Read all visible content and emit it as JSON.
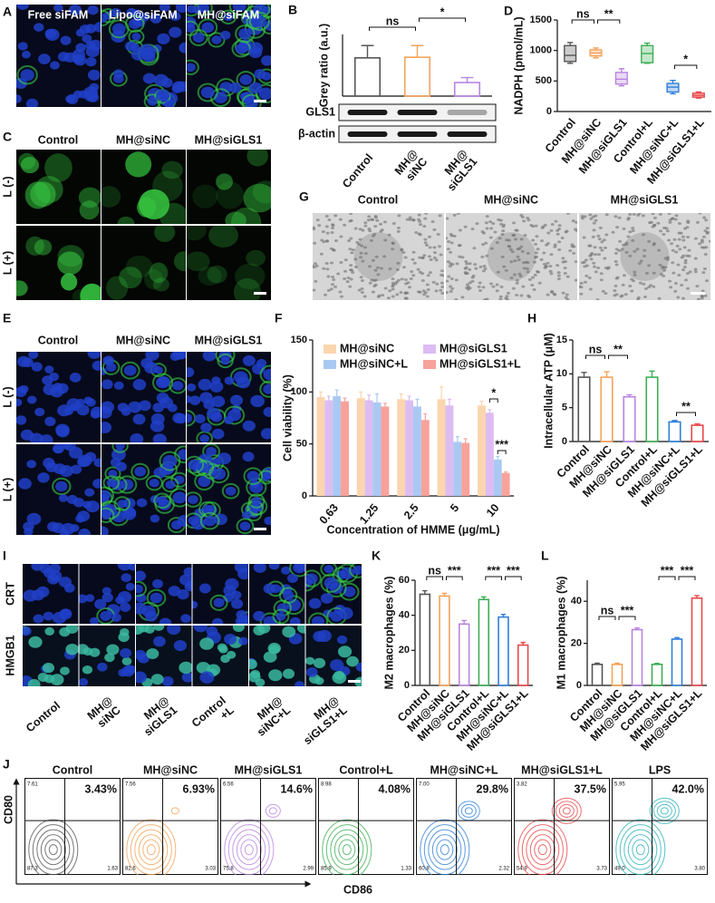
{
  "panel_letters": [
    "A",
    "B",
    "C",
    "D",
    "E",
    "F",
    "G",
    "H",
    "I",
    "J",
    "K",
    "L"
  ],
  "images": {
    "A": {
      "columns": [
        "Free siFAM",
        "Lipo@siFAM",
        "MH@siFAM"
      ]
    },
    "C": {
      "columns": [
        "Control",
        "MH@siNC",
        "MH@siGLS1"
      ],
      "rows": [
        "L (-)",
        "L (+)"
      ]
    },
    "E": {
      "columns": [
        "Control",
        "MH@siNC",
        "MH@siGLS1"
      ],
      "rows": [
        "L (-)",
        "L (+)"
      ]
    },
    "G": {
      "columns": [
        "Control",
        "MH@siNC",
        "MH@siGLS1"
      ]
    },
    "I": {
      "rows": [
        "CRT",
        "HMGB1"
      ],
      "columns": [
        "Control",
        "MH@\nsiNC",
        "MH@\nsiGLS1",
        "Control\n+L",
        "MH@\nsiNC+L",
        "MH@\nsiGLS1+L"
      ]
    },
    "J": {
      "columns": [
        "Control",
        "MH@siNC",
        "MH@siGLS1",
        "Control+L",
        "MH@siNC+L",
        "MH@siGLS1+L",
        "LPS"
      ],
      "percent": [
        "3.43%",
        "6.93%",
        "14.6%",
        "4.08%",
        "29.8%",
        "37.5%",
        "42.0%"
      ],
      "upper_left": [
        "7.61",
        "7.56",
        "6.56",
        "8.98",
        "7.00",
        "3.82",
        "5.95"
      ],
      "lower_left": [
        "87.3",
        "82.6",
        "75.8",
        "85.9",
        "60.8",
        "54.9",
        "49.0"
      ],
      "lower_right": [
        "1.63",
        "3.03",
        "2.99",
        "1.33",
        "2.32",
        "3.73",
        "3.80"
      ],
      "xlabel": "CD86",
      "ylabel": "CD80"
    }
  },
  "chart_data": [
    {
      "type": "bar",
      "ylabel": "Grey ratio (a.u.)",
      "categories": [
        "Control",
        "MH@\nsiNC",
        "MH@\nsiGLS1"
      ],
      "values": [
        0.62,
        0.63,
        0.22
      ],
      "errors": [
        0.2,
        0.19,
        0.08
      ],
      "colors": [
        "#555555",
        "#f4a259",
        "#b884e0"
      ],
      "hollow": true,
      "ylim": [
        0,
        1
      ],
      "annotations": [
        "ns",
        "*"
      ],
      "blot_labels": [
        "GLS1",
        "β-actin"
      ]
    },
    {
      "type": "box",
      "ylabel": "NADPH (pmol/mL)",
      "categories": [
        "Control",
        "MH@siNC",
        "MH@siGLS1",
        "Control+L",
        "MH@siNC+L",
        "MH@siGLS1+L"
      ],
      "min": [
        790,
        880,
        420,
        790,
        290,
        220
      ],
      "q1": [
        820,
        910,
        450,
        800,
        320,
        235
      ],
      "median": [
        920,
        960,
        530,
        950,
        400,
        265
      ],
      "q3": [
        1080,
        1010,
        640,
        1080,
        460,
        300
      ],
      "max": [
        1130,
        1040,
        700,
        1120,
        510,
        320
      ],
      "colors": [
        "#555555",
        "#f4a259",
        "#b884e0",
        "#3dae54",
        "#2f7fd8",
        "#e8474a"
      ],
      "ylim": [
        0,
        1500
      ],
      "yticks": [
        0,
        500,
        1000,
        1500
      ],
      "annotations": [
        "ns",
        "**",
        "*"
      ]
    },
    {
      "type": "grouped_bar",
      "xlabel": "Concentration of HMME (μg/mL)",
      "ylabel": "Cell viability (%)",
      "categories": [
        "0.63",
        "1.25",
        "2.5",
        "5",
        "10"
      ],
      "series": [
        {
          "name": "MH@siNC",
          "color": "#fbd5ae",
          "values": [
            95,
            94,
            93,
            93,
            87
          ],
          "errors": [
            5,
            6,
            5,
            12,
            4
          ]
        },
        {
          "name": "MH@siGLS1",
          "color": "#dcbcf2",
          "values": [
            92,
            92,
            92,
            87,
            80
          ],
          "errors": [
            4,
            5,
            4,
            6,
            3
          ]
        },
        {
          "name": "MH@siNC+L",
          "color": "#a9c9f2",
          "values": [
            96,
            90,
            86,
            52,
            35
          ],
          "errors": [
            6,
            8,
            7,
            5,
            3
          ]
        },
        {
          "name": "MH@siGLS1+L",
          "color": "#f7a29b",
          "values": [
            91,
            86,
            73,
            51,
            22
          ],
          "errors": [
            3,
            3,
            6,
            4,
            1
          ]
        }
      ],
      "ylim": [
        0,
        150
      ],
      "yticks": [
        0,
        50,
        100,
        150
      ],
      "legend": "top",
      "annotations": [
        "*",
        "***"
      ]
    },
    {
      "type": "bar",
      "ylabel": "Intracellular ATP (μM)",
      "categories": [
        "Control",
        "MH@siNC",
        "MH@siGLS1",
        "Control+L",
        "MH@siNC+L",
        "MH@siGLS1+L"
      ],
      "values": [
        9.5,
        9.5,
        6.6,
        9.5,
        2.9,
        2.4
      ],
      "errors": [
        0.7,
        0.8,
        0.3,
        0.9,
        0.2,
        0.2
      ],
      "colors": [
        "#555555",
        "#f4a259",
        "#b884e0",
        "#3dae54",
        "#2f7fd8",
        "#e8474a"
      ],
      "hollow": true,
      "ylim": [
        0,
        15
      ],
      "yticks": [
        0,
        5,
        10,
        15
      ],
      "annotations": [
        "ns",
        "**",
        "**"
      ]
    },
    {
      "type": "bar",
      "ylabel": "M2 macrophages (%)",
      "categories": [
        "Control",
        "MH@siNC",
        "MH@siGLS1",
        "Control+L",
        "MH@siNC+L",
        "MH@siGLS1+L"
      ],
      "values": [
        52,
        51,
        35,
        49,
        39,
        23
      ],
      "errors": [
        2,
        1.5,
        2,
        1.5,
        1.5,
        1.5
      ],
      "colors": [
        "#555555",
        "#f4a259",
        "#b884e0",
        "#3dae54",
        "#2f7fd8",
        "#e8474a"
      ],
      "hollow": true,
      "ylim": [
        0,
        60
      ],
      "yticks": [
        0,
        20,
        40,
        60
      ],
      "annotations": [
        "ns",
        "***",
        "***",
        "***"
      ]
    },
    {
      "type": "bar",
      "ylabel": "M1 macrophages (%)",
      "categories": [
        "Control",
        "MH@siNC",
        "MH@siGLS1",
        "Control+L",
        "MH@siNC+L",
        "MH@siGLS1+L"
      ],
      "values": [
        10,
        10,
        26.5,
        10,
        22,
        41.5
      ],
      "errors": [
        0.6,
        0.6,
        0.8,
        0.5,
        0.7,
        1.2
      ],
      "colors": [
        "#555555",
        "#f4a259",
        "#b884e0",
        "#3dae54",
        "#2f7fd8",
        "#e8474a"
      ],
      "hollow": true,
      "ylim": [
        0,
        50
      ],
      "yticks": [
        0,
        20,
        40
      ],
      "annotations": [
        "ns",
        "***",
        "***",
        "***"
      ]
    }
  ]
}
